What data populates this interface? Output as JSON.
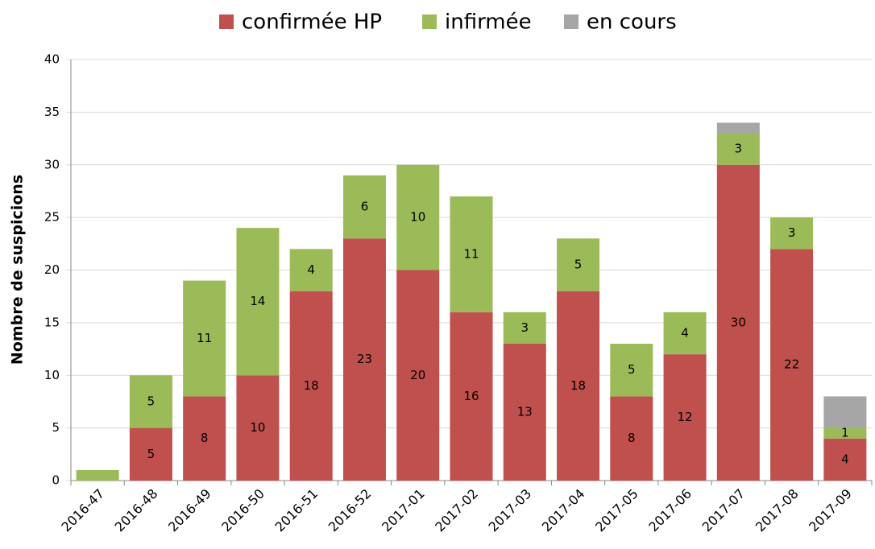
{
  "chart_data": {
    "type": "bar",
    "stacked": true,
    "y_label": "Nombre de suspicions",
    "categories": [
      "2016-47",
      "2016-48",
      "2016-49",
      "2016-50",
      "2016-51",
      "2016-52",
      "2017-01",
      "2017-02",
      "2017-03",
      "2017-04",
      "2017-05",
      "2017-06",
      "2017-07",
      "2017-08",
      "2017-09"
    ],
    "series": [
      {
        "name": "confirmée HP",
        "color": "#c0504d",
        "values": [
          0,
          5,
          8,
          10,
          18,
          23,
          20,
          16,
          13,
          18,
          8,
          12,
          30,
          22,
          4
        ],
        "value_labels": [
          null,
          "5",
          "8",
          "10",
          "18",
          "23",
          "20",
          "16",
          "13",
          "18",
          "8",
          "12",
          "30",
          "22",
          "4"
        ]
      },
      {
        "name": "infirmée",
        "color": "#9bbb59",
        "values": [
          1,
          5,
          11,
          14,
          4,
          6,
          10,
          11,
          3,
          5,
          5,
          4,
          3,
          3,
          1
        ],
        "value_labels": [
          null,
          "5",
          "11",
          "14",
          "4",
          "6",
          "10",
          "11",
          "3",
          "5",
          "5",
          "4",
          "3",
          "3",
          "1"
        ]
      },
      {
        "name": "en cours",
        "color": "#a6a6a6",
        "values": [
          0,
          0,
          0,
          0,
          0,
          0,
          0,
          0,
          0,
          0,
          0,
          0,
          1,
          0,
          3
        ]
      }
    ],
    "ylim": [
      0,
      40
    ],
    "yticks": [
      0,
      5,
      10,
      15,
      20,
      25,
      30,
      35,
      40
    ],
    "grid": true,
    "legend": "top"
  }
}
